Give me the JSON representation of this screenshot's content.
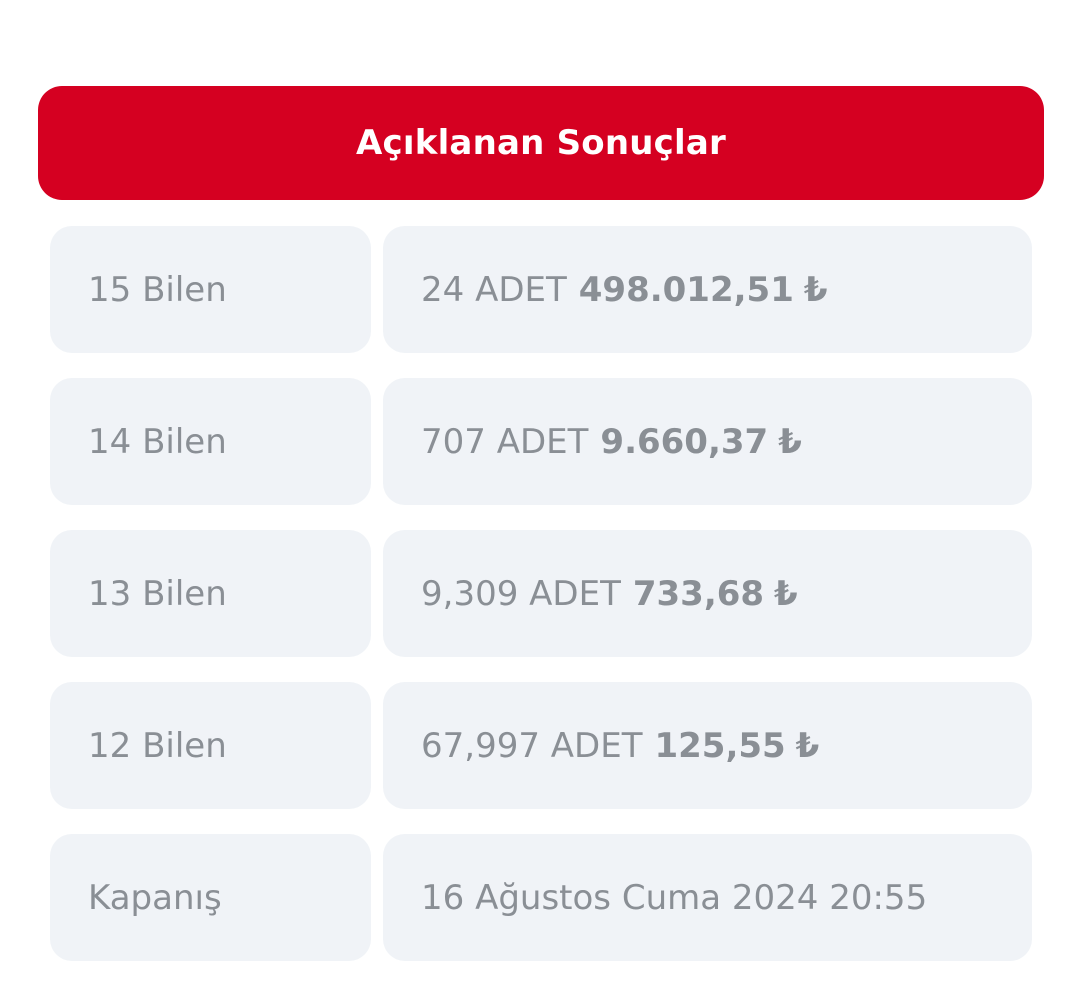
{
  "header": {
    "title": "Açıklanan Sonuçlar"
  },
  "results": [
    {
      "label": "15 Bilen",
      "count": "24 ADET",
      "amount": "498.012,51",
      "currency": "₺"
    },
    {
      "label": "14 Bilen",
      "count": "707 ADET",
      "amount": "9.660,37",
      "currency": "₺"
    },
    {
      "label": "13 Bilen",
      "count": "9,309 ADET",
      "amount": "733,68",
      "currency": "₺"
    },
    {
      "label": "12 Bilen",
      "count": "67,997 ADET",
      "amount": "125,55",
      "currency": "₺"
    }
  ],
  "closing": {
    "label": "Kapanış",
    "value": "16 Ağustos Cuma 2024 20:55"
  },
  "colors": {
    "header_bg": "#d50021",
    "cell_bg": "#f0f3f7",
    "text": "#8a8f95"
  }
}
